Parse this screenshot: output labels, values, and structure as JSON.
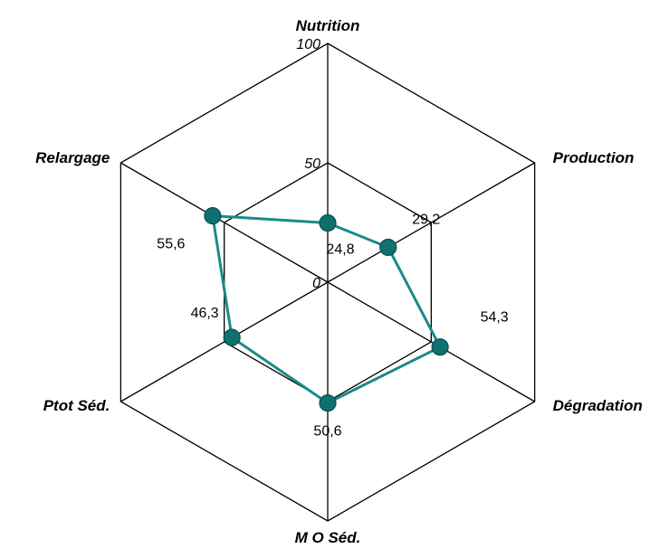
{
  "chart_data": {
    "type": "radar",
    "axes": [
      "Nutrition",
      "Production",
      "Dégradation",
      "M O Séd.",
      "Ptot Séd.",
      "Relargage"
    ],
    "ticks": [
      "0",
      "50",
      "100"
    ],
    "range": [
      0,
      100
    ],
    "series": [
      {
        "values": [
          24.8,
          29.2,
          54.3,
          50.6,
          46.3,
          55.6
        ],
        "labels": [
          "24,8",
          "29,2",
          "54,3",
          "50,6",
          "46,3",
          "55,6"
        ],
        "color": "#1a8a8a",
        "marker_color": "#0f7070"
      }
    ],
    "grid": true,
    "gridlines": [
      50,
      100
    ]
  }
}
